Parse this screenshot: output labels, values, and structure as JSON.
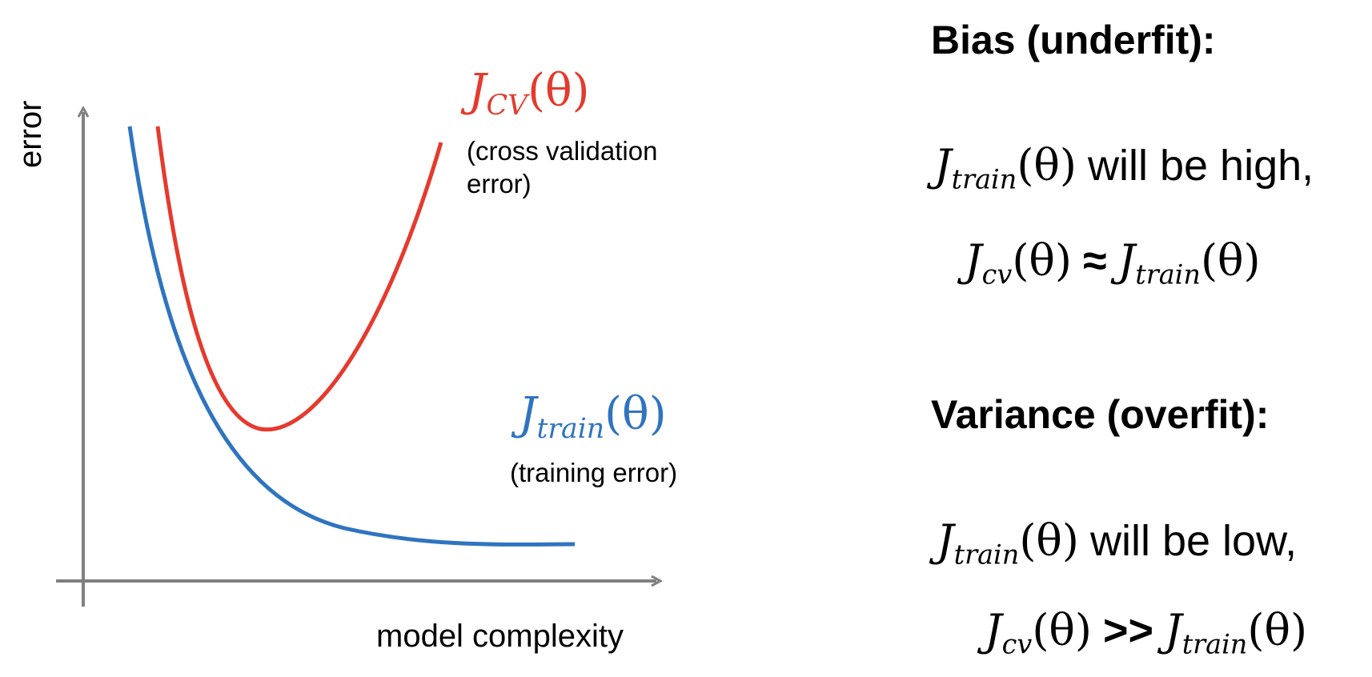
{
  "diagram": {
    "axis_y_label": "error",
    "axis_x_label": "model complexity",
    "cv_curve": {
      "symbol_base": "J",
      "symbol_sub": "CV",
      "symbol_arg": "(θ)",
      "caption_line1": "(cross validation",
      "caption_line2": "error)",
      "color": "#e53a2e"
    },
    "train_curve": {
      "symbol_base": "J",
      "symbol_sub": "train",
      "symbol_arg": "(θ)",
      "caption": "(training error)",
      "color": "#2f74c0"
    },
    "axis_color": "#808080"
  },
  "bias": {
    "heading": "Bias (underfit):",
    "line1": {
      "lhs_base": "J",
      "lhs_sub": "train",
      "lhs_arg": "(θ)",
      "text": "will be high,"
    },
    "line2": {
      "lhs_base": "J",
      "lhs_sub": "cv",
      "lhs_arg": "(θ)",
      "relation": "≈",
      "rhs_base": "J",
      "rhs_sub": "train",
      "rhs_arg": "(θ)"
    }
  },
  "variance": {
    "heading": "Variance (overfit):",
    "line1": {
      "lhs_base": "J",
      "lhs_sub": "train",
      "lhs_arg": "(θ)",
      "text": "will be low,"
    },
    "line2": {
      "lhs_base": "J",
      "lhs_sub": "cv",
      "lhs_arg": "(θ)",
      "relation": ">>",
      "rhs_base": "J",
      "rhs_sub": "train",
      "rhs_arg": "(θ)"
    }
  }
}
